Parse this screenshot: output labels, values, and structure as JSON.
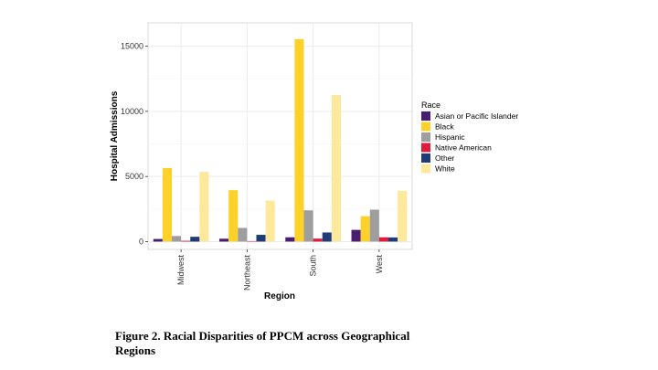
{
  "chart_data": {
    "type": "bar",
    "xlabel": "Region",
    "ylabel": "Hospital Admissions",
    "ylim": [
      -600,
      16800
    ],
    "yticks": [
      0,
      5000,
      10000,
      15000
    ],
    "categories": [
      "Midwest",
      "Northeast",
      "South",
      "West"
    ],
    "legend_title": "Race",
    "legend_position": "right",
    "series": [
      {
        "name": "Asian or Pacific Islander",
        "color": "#4a1e6e",
        "values": [
          200,
          220,
          330,
          900
        ]
      },
      {
        "name": "Black",
        "color": "#fcd12a",
        "values": [
          5650,
          3950,
          15550,
          1950
        ]
      },
      {
        "name": "Hispanic",
        "color": "#9e9e9e",
        "values": [
          430,
          1050,
          2400,
          2450
        ]
      },
      {
        "name": "Native American",
        "color": "#e01b3c",
        "values": [
          60,
          40,
          230,
          330
        ]
      },
      {
        "name": "Other",
        "color": "#1f3c78",
        "values": [
          370,
          520,
          700,
          320
        ]
      },
      {
        "name": "White",
        "color": "#fde89b",
        "values": [
          5350,
          3150,
          11250,
          3900
        ]
      }
    ]
  },
  "caption": {
    "line1": "Figure 2. Racial Disparities of PPCM across Geographical",
    "line2": "Regions"
  }
}
